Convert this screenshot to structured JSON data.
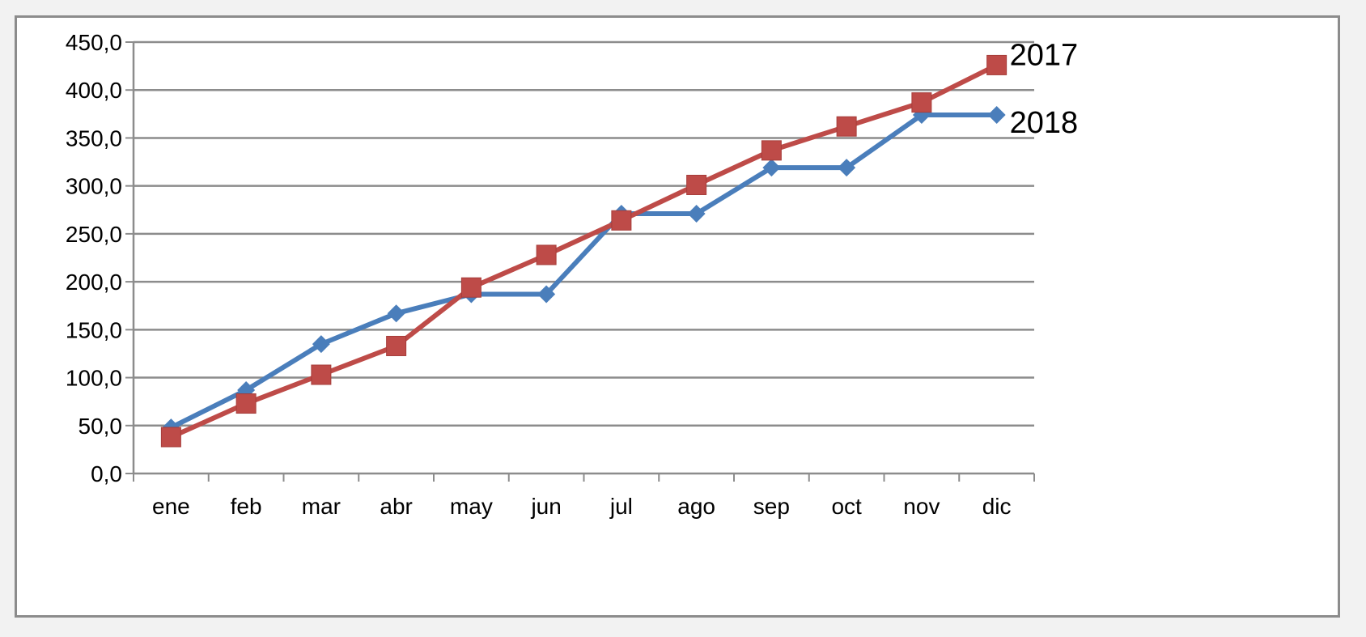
{
  "chart_data": {
    "type": "line",
    "categories": [
      "ene",
      "feb",
      "mar",
      "abr",
      "may",
      "jun",
      "jul",
      "ago",
      "sep",
      "oct",
      "nov",
      "dic"
    ],
    "ylim": [
      0,
      450
    ],
    "yticks": [
      "0,0",
      "50,0",
      "100,0",
      "150,0",
      "200,0",
      "250,0",
      "300,0",
      "350,0",
      "400,0",
      "450,0"
    ],
    "grid": true,
    "legend": "labels at line ends",
    "series": [
      {
        "name": "2018",
        "color": "#4a7ebb",
        "marker": "diamond",
        "values": [
          48,
          87,
          135,
          167,
          187,
          187,
          271,
          271,
          319,
          319,
          374,
          374
        ]
      },
      {
        "name": "2017",
        "color": "#be4b48",
        "marker": "square",
        "values": [
          38,
          73,
          103,
          133,
          194,
          228,
          264,
          301,
          337,
          362,
          387,
          426
        ]
      }
    ]
  }
}
